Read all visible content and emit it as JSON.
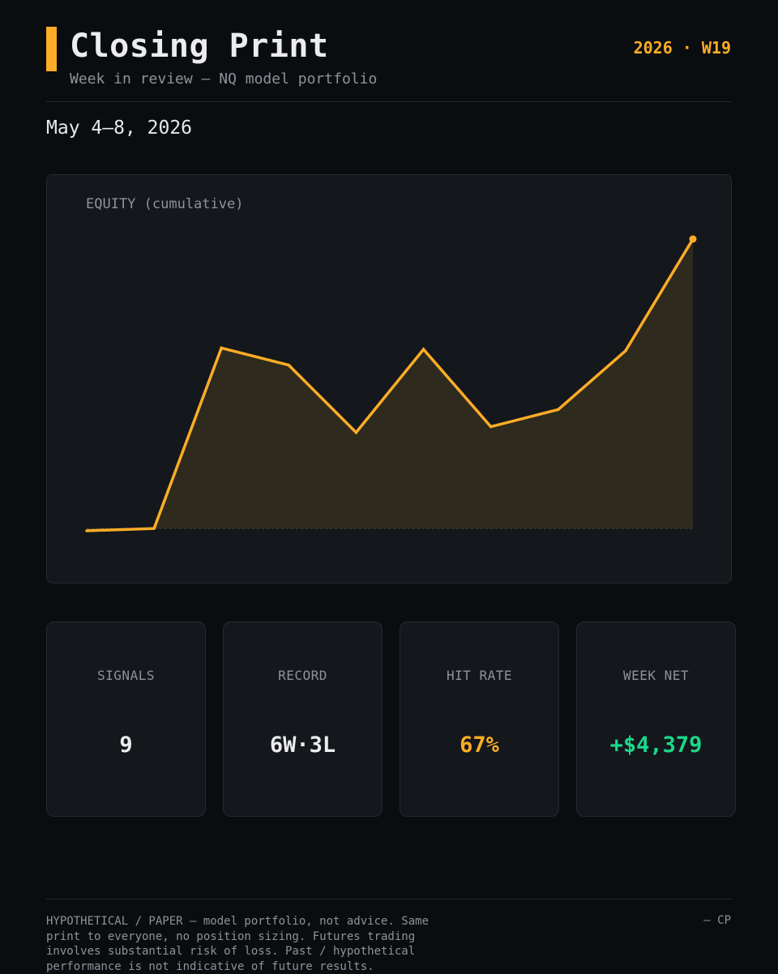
{
  "header": {
    "title": "Closing Print",
    "subtitle": "Week in review — NQ model portfolio",
    "week_tag": "2026 · W19",
    "accent_color": "#ffad26"
  },
  "date_range": "May 4–8, 2026",
  "chart_data": {
    "type": "area",
    "title": "EQUITY (cumulative)",
    "xlabel": "",
    "ylabel": "",
    "grid": false,
    "legend": "none",
    "baseline": 0,
    "series": [
      {
        "values": [
          -0.08,
          0,
          6.3,
          5.7,
          3.35,
          6.25,
          3.55,
          4.15,
          6.2,
          10.1
        ]
      }
    ],
    "line_color": "#ffad26",
    "fill_color": "#2e2a1e"
  },
  "stats": [
    {
      "label": "SIGNALS",
      "value": "9",
      "color": "#ececee"
    },
    {
      "label": "RECORD",
      "value": "6W·3L",
      "color": "#ececee"
    },
    {
      "label": "HIT RATE",
      "value": "67%",
      "color": "#ffad26"
    },
    {
      "label": "WEEK NET",
      "value": "+$4,379",
      "color": "#19d98a"
    }
  ],
  "footer": {
    "disclaimer": "HYPOTHETICAL / PAPER — model portfolio, not advice. Same print to everyone, no position sizing. Futures trading involves substantial risk of loss. Past / hypothetical performance is not indicative of future results.",
    "signoff": "— CP"
  }
}
